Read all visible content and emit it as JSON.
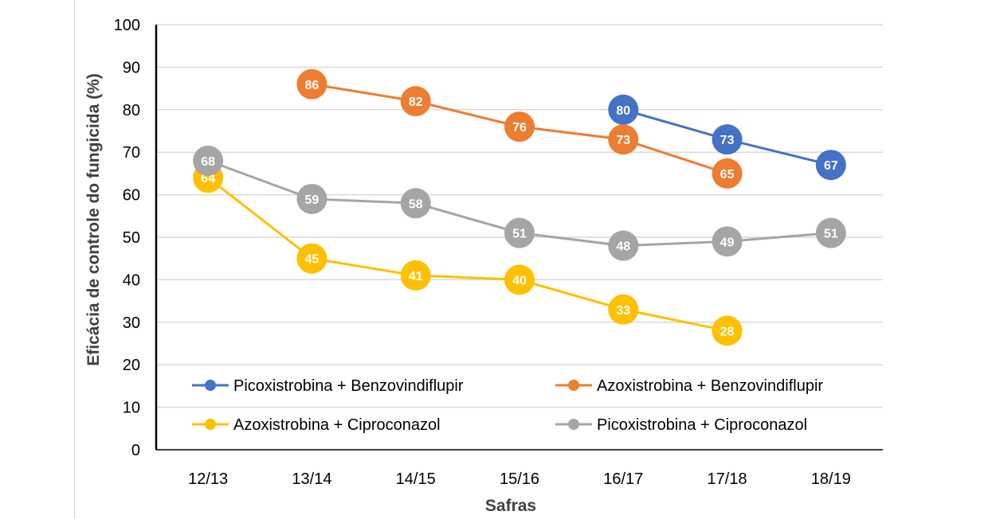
{
  "chart_data": {
    "type": "line",
    "categories": [
      "12/13",
      "13/14",
      "14/15",
      "15/16",
      "16/17",
      "17/18",
      "18/19"
    ],
    "xlabel": "Safras",
    "ylabel": "Eficácia de controle do fungicida (%)",
    "ylim": [
      0,
      100
    ],
    "yticks": [
      0,
      10,
      20,
      30,
      40,
      50,
      60,
      70,
      80,
      90,
      100
    ],
    "grid": true,
    "legend_position": "bottom",
    "series": [
      {
        "name": "Picoxistrobina + Benzovindiflupir",
        "color": "#4472C4",
        "values": [
          null,
          null,
          null,
          null,
          80,
          73,
          67
        ]
      },
      {
        "name": "Azoxistrobina + Benzovindiflupir",
        "color": "#ED7D31",
        "values": [
          null,
          86,
          82,
          76,
          73,
          65,
          null
        ]
      },
      {
        "name": "Azoxistrobina + Ciproconazol",
        "color": "#FFC000",
        "values": [
          64,
          45,
          41,
          40,
          33,
          28,
          null
        ]
      },
      {
        "name": "Picoxistrobina + Ciproconazol",
        "color": "#A5A5A5",
        "values": [
          68,
          59,
          58,
          51,
          48,
          49,
          51
        ]
      }
    ]
  }
}
